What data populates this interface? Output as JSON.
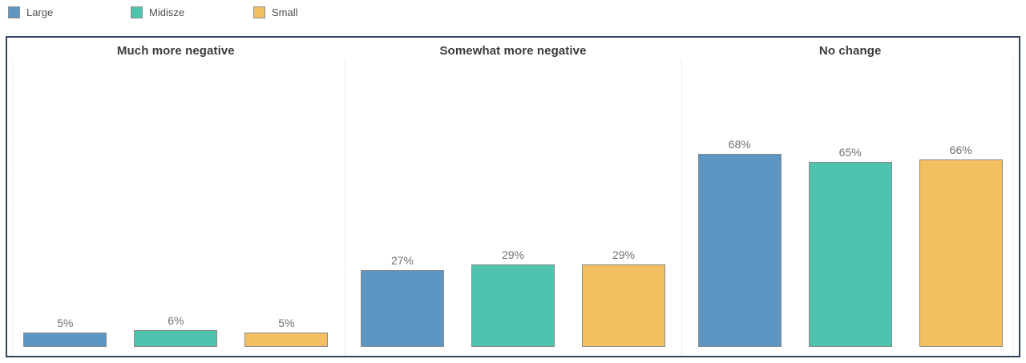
{
  "legend": {
    "items": [
      {
        "label": "Large",
        "color": "#5d95c3"
      },
      {
        "label": "Midisze",
        "color": "#4fc3ad"
      },
      {
        "label": "Small",
        "color": "#f3bf60"
      }
    ]
  },
  "chart_data": {
    "type": "bar",
    "title": "",
    "categories": [
      "Much more negative",
      "Somewhat more negative",
      "No change"
    ],
    "series": [
      {
        "name": "Large",
        "color": "#5d95c3",
        "values": [
          5,
          27,
          68
        ]
      },
      {
        "name": "Midisze",
        "color": "#4fc3ad",
        "values": [
          6,
          29,
          65
        ]
      },
      {
        "name": "Small",
        "color": "#f3bf60",
        "values": [
          5,
          29,
          66
        ]
      }
    ],
    "value_suffix": "%",
    "ylim": [
      0,
      100
    ],
    "grid": false,
    "legend_position": "top-left",
    "layout": "faceted-by-category",
    "colors": {
      "frame_border": "#33435f",
      "bar_border": "#8a8a8a",
      "divider": "#d8d8d8",
      "header_text": "#3b3b3b",
      "value_label_text": "#717171",
      "legend_text": "#4e4e4e"
    }
  }
}
